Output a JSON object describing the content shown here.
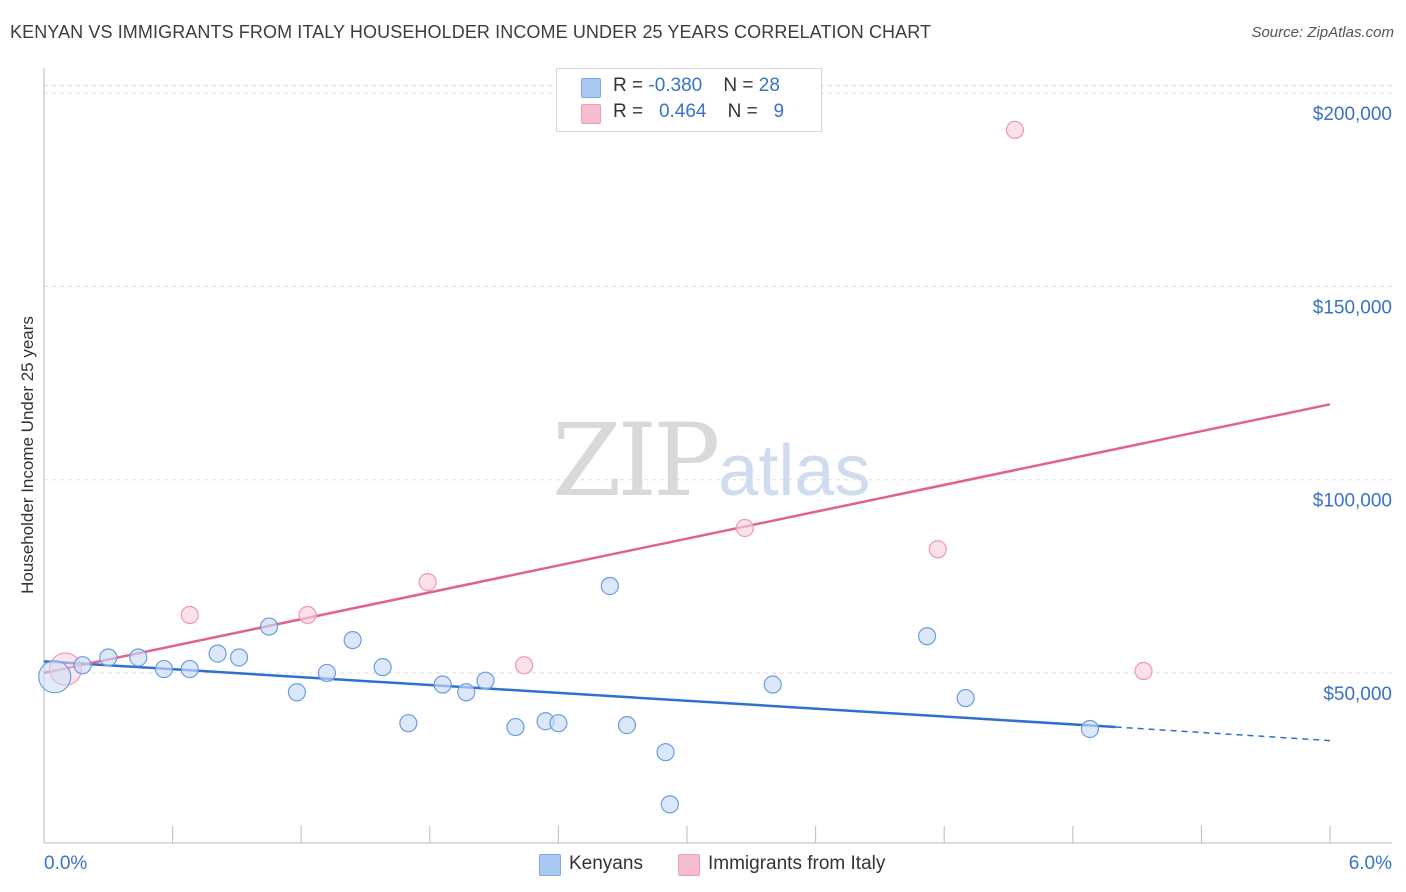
{
  "header": {
    "title": "KENYAN VS IMMIGRANTS FROM ITALY HOUSEHOLDER INCOME UNDER 25 YEARS CORRELATION CHART",
    "source": "Source: ZipAtlas.com"
  },
  "watermark": {
    "zip": "ZIP",
    "atlas": "atlas"
  },
  "stats": [
    {
      "r_label": "R = ",
      "r_value": "-0.380",
      "n_label": "N = ",
      "n_value": "28",
      "color": "#a9c8f2"
    },
    {
      "r_label": "R = ",
      "r_value": "0.464",
      "n_label": "N = ",
      "n_value": "9",
      "color": "#f6bcd0"
    }
  ],
  "legend": [
    {
      "label": "Kenyans",
      "color": "#a9c8f2"
    },
    {
      "label": "Immigrants from Italy",
      "color": "#f6bcd0"
    }
  ],
  "chart_data": {
    "type": "scatter",
    "title": "KENYAN VS IMMIGRANTS FROM ITALY HOUSEHOLDER INCOME UNDER 25 YEARS CORRELATION CHART",
    "xlabel": "",
    "ylabel": "Householder Income Under 25 years",
    "xlim": [
      0,
      6
    ],
    "ylim": [
      6000,
      206000
    ],
    "x_tick_labels": [
      "0.0%",
      "6.0%"
    ],
    "y_ticks": [
      50000,
      100000,
      150000,
      200000
    ],
    "y_tick_labels": [
      "$50,000",
      "$100,000",
      "$150,000",
      "$200,000"
    ],
    "grid": "horizontal dashed",
    "legend_position": "bottom-center",
    "series": [
      {
        "name": "Kenyans",
        "color": "#6a9de0",
        "fill": "#c9dcf6",
        "line_color": "#2f6fd0",
        "trend": {
          "x": [
            0,
            5.0
          ],
          "y": [
            53000,
            36000
          ],
          "dashed_to": [
            6.0,
            32500
          ]
        },
        "points": [
          {
            "x": 0.05,
            "y": 49000,
            "big": true
          },
          {
            "x": 0.18,
            "y": 52000
          },
          {
            "x": 0.3,
            "y": 54000
          },
          {
            "x": 0.44,
            "y": 54000
          },
          {
            "x": 0.56,
            "y": 51000
          },
          {
            "x": 0.68,
            "y": 51000
          },
          {
            "x": 0.81,
            "y": 55000
          },
          {
            "x": 0.91,
            "y": 54000
          },
          {
            "x": 1.05,
            "y": 62000
          },
          {
            "x": 1.18,
            "y": 45000
          },
          {
            "x": 1.32,
            "y": 50000
          },
          {
            "x": 1.44,
            "y": 58500
          },
          {
            "x": 1.58,
            "y": 51500
          },
          {
            "x": 1.7,
            "y": 37000
          },
          {
            "x": 1.86,
            "y": 47000
          },
          {
            "x": 1.97,
            "y": 45000
          },
          {
            "x": 2.06,
            "y": 48000
          },
          {
            "x": 2.2,
            "y": 36000
          },
          {
            "x": 2.34,
            "y": 37500
          },
          {
            "x": 2.4,
            "y": 37000
          },
          {
            "x": 2.64,
            "y": 72500
          },
          {
            "x": 2.72,
            "y": 36500
          },
          {
            "x": 2.9,
            "y": 29500
          },
          {
            "x": 2.92,
            "y": 16000
          },
          {
            "x": 3.4,
            "y": 47000
          },
          {
            "x": 4.12,
            "y": 59500
          },
          {
            "x": 4.3,
            "y": 43500
          },
          {
            "x": 4.88,
            "y": 35500
          }
        ]
      },
      {
        "name": "Immigrants from Italy",
        "color": "#ef96b4",
        "fill": "#f9d1df",
        "line_color": "#e0628f",
        "trend": {
          "x": [
            0,
            6.0
          ],
          "y": [
            50000,
            119500
          ]
        },
        "points": [
          {
            "x": 0.1,
            "y": 51000,
            "big": true
          },
          {
            "x": 0.68,
            "y": 65000
          },
          {
            "x": 1.23,
            "y": 65000
          },
          {
            "x": 1.79,
            "y": 73500
          },
          {
            "x": 2.24,
            "y": 52000
          },
          {
            "x": 3.27,
            "y": 87500
          },
          {
            "x": 4.17,
            "y": 82000
          },
          {
            "x": 4.53,
            "y": 190500
          },
          {
            "x": 5.13,
            "y": 50500
          }
        ]
      }
    ]
  }
}
